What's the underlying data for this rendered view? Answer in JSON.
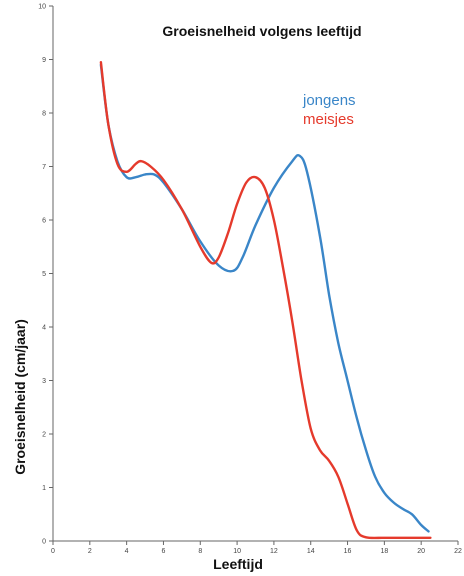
{
  "chart_data": {
    "type": "line",
    "title": "Groeisnelheid volgens leeftijd",
    "xlabel": "Leeftijd",
    "ylabel": "Groeisnelheid (cm/jaar)",
    "xlim": [
      0,
      22
    ],
    "ylim": [
      0,
      10
    ],
    "xticks": [
      "0",
      "2",
      "4",
      "6",
      "8",
      "10",
      "12",
      "14",
      "16",
      "18",
      "20",
      "22"
    ],
    "yticks": [
      "0",
      "1",
      "2",
      "3",
      "4",
      "5",
      "6",
      "7",
      "8",
      "9",
      "10"
    ],
    "grid": false,
    "legend_placement": "top-right",
    "series": [
      {
        "name": "jongens",
        "color": "#3a86c8",
        "points": [
          [
            2.6,
            8.9
          ],
          [
            3.0,
            7.8
          ],
          [
            3.5,
            7.1
          ],
          [
            4.0,
            6.8
          ],
          [
            4.5,
            6.8
          ],
          [
            5.0,
            6.85
          ],
          [
            5.5,
            6.85
          ],
          [
            6.0,
            6.7
          ],
          [
            7.0,
            6.2
          ],
          [
            8.0,
            5.6
          ],
          [
            9.0,
            5.15
          ],
          [
            9.8,
            5.05
          ],
          [
            10.3,
            5.3
          ],
          [
            11.0,
            5.9
          ],
          [
            12.0,
            6.6
          ],
          [
            13.0,
            7.1
          ],
          [
            13.4,
            7.2
          ],
          [
            13.8,
            6.9
          ],
          [
            14.5,
            5.7
          ],
          [
            15.0,
            4.6
          ],
          [
            15.5,
            3.7
          ],
          [
            16.0,
            3.0
          ],
          [
            16.5,
            2.3
          ],
          [
            17.0,
            1.7
          ],
          [
            17.5,
            1.2
          ],
          [
            18.0,
            0.9
          ],
          [
            18.5,
            0.72
          ],
          [
            19.0,
            0.6
          ],
          [
            19.5,
            0.5
          ],
          [
            20.0,
            0.3
          ],
          [
            20.4,
            0.18
          ]
        ]
      },
      {
        "name": "meisjes",
        "color": "#e53a2c",
        "points": [
          [
            2.6,
            8.95
          ],
          [
            3.0,
            7.8
          ],
          [
            3.5,
            7.05
          ],
          [
            4.0,
            6.9
          ],
          [
            4.5,
            7.05
          ],
          [
            4.8,
            7.1
          ],
          [
            5.3,
            7.0
          ],
          [
            6.0,
            6.75
          ],
          [
            7.0,
            6.2
          ],
          [
            8.0,
            5.5
          ],
          [
            8.6,
            5.2
          ],
          [
            9.0,
            5.3
          ],
          [
            9.5,
            5.75
          ],
          [
            10.0,
            6.3
          ],
          [
            10.5,
            6.7
          ],
          [
            11.0,
            6.8
          ],
          [
            11.5,
            6.6
          ],
          [
            12.0,
            6.0
          ],
          [
            12.5,
            5.1
          ],
          [
            13.0,
            4.1
          ],
          [
            13.5,
            3.0
          ],
          [
            14.0,
            2.1
          ],
          [
            14.5,
            1.7
          ],
          [
            15.0,
            1.5
          ],
          [
            15.5,
            1.2
          ],
          [
            16.0,
            0.7
          ],
          [
            16.5,
            0.2
          ],
          [
            17.0,
            0.07
          ],
          [
            18.0,
            0.06
          ],
          [
            19.0,
            0.06
          ],
          [
            20.0,
            0.06
          ],
          [
            20.5,
            0.06
          ]
        ]
      }
    ]
  }
}
